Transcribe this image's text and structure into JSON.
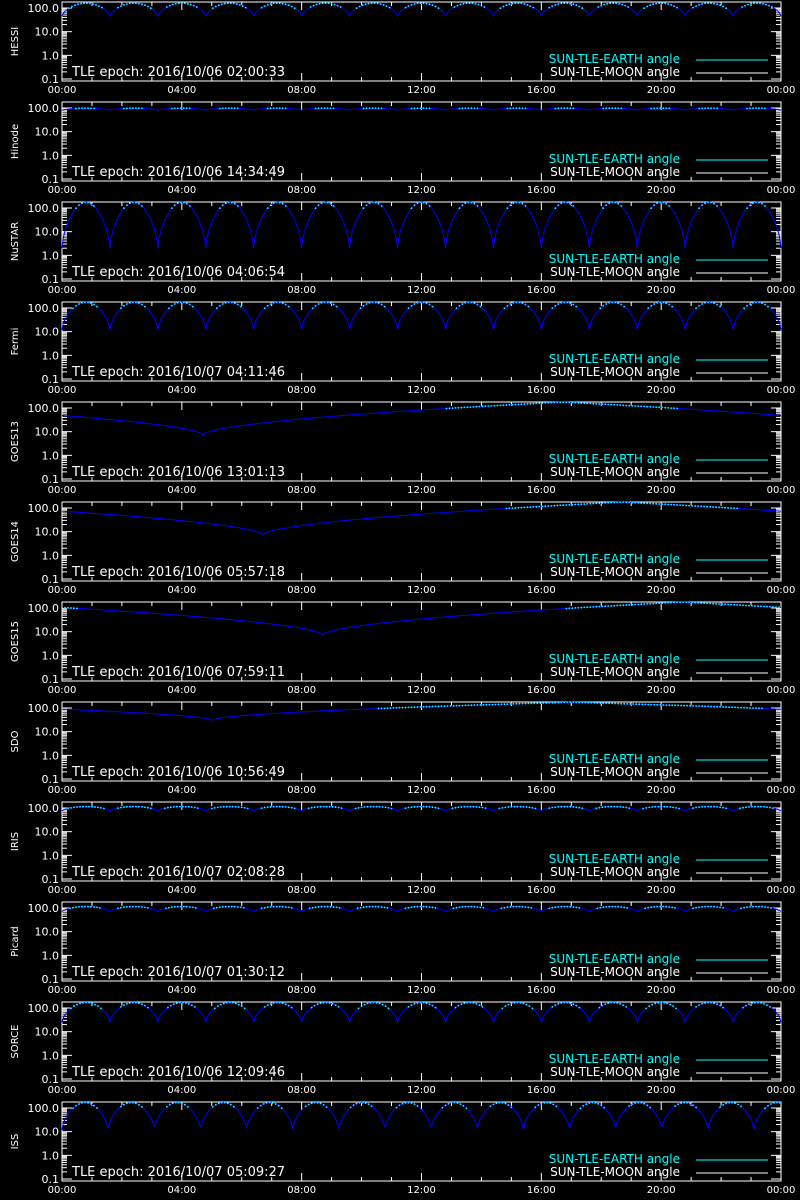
{
  "colors": {
    "background": "#000000",
    "axes": "#ffffff",
    "sun_earth": "#00ffff",
    "sun_moon": "#ffffff",
    "curve": "#0000ff"
  },
  "chart_data": [
    {
      "type": "line",
      "panel": "HESSI",
      "ylabel": "HESSI",
      "epoch_text": "TLE epoch: 2016/10/06 02:00:33",
      "y_scale": "log",
      "ylim": [
        0.1,
        180
      ],
      "yticks": [
        "100.0",
        "10.0",
        "1.0",
        "0.1"
      ],
      "xticks": [
        "00:00",
        "04:00",
        "08:00",
        "12:00",
        "16:00",
        "20:00",
        "00:00"
      ],
      "legend": [
        "SUN-TLE-EARTH angle",
        "SUN-TLE-MOON angle"
      ],
      "legend_position": "bottom-right",
      "curve": {
        "kind": "periodic",
        "period_hours": 1.6,
        "y_max": 160,
        "y_min": 45
      }
    },
    {
      "type": "line",
      "panel": "Hinode",
      "ylabel": "Hinode",
      "epoch_text": "TLE epoch: 2016/10/06 14:34:49",
      "y_scale": "log",
      "ylim": [
        0.1,
        180
      ],
      "yticks": [
        "100.0",
        "10.0",
        "1.0",
        "0.1"
      ],
      "xticks": [
        "00:00",
        "04:00",
        "08:00",
        "12:00",
        "16:00",
        "20:00",
        "00:00"
      ],
      "legend": [
        "SUN-TLE-EARTH angle",
        "SUN-TLE-MOON angle"
      ],
      "legend_position": "bottom-right",
      "curve": {
        "kind": "periodic",
        "period_hours": 1.6,
        "y_max": 98,
        "y_min": 80
      }
    },
    {
      "type": "line",
      "panel": "NuSTAR",
      "ylabel": "NuSTAR",
      "epoch_text": "TLE epoch: 2016/10/06 04:06:54",
      "y_scale": "log",
      "ylim": [
        0.1,
        180
      ],
      "yticks": [
        "100.0",
        "10.0",
        "1.0",
        "0.1"
      ],
      "xticks": [
        "00:00",
        "04:00",
        "08:00",
        "12:00",
        "16:00",
        "20:00",
        "00:00"
      ],
      "legend": [
        "SUN-TLE-EARTH angle",
        "SUN-TLE-MOON angle"
      ],
      "legend_position": "bottom-right",
      "curve": {
        "kind": "periodic",
        "period_hours": 1.6,
        "y_max": 175,
        "y_min": 2
      }
    },
    {
      "type": "line",
      "panel": "Fermi",
      "ylabel": "Fermi",
      "epoch_text": "TLE epoch: 2016/10/07 04:11:46",
      "y_scale": "log",
      "ylim": [
        0.1,
        180
      ],
      "yticks": [
        "100.0",
        "10.0",
        "1.0",
        "0.1"
      ],
      "xticks": [
        "00:00",
        "04:00",
        "08:00",
        "12:00",
        "16:00",
        "20:00",
        "00:00"
      ],
      "legend": [
        "SUN-TLE-EARTH angle",
        "SUN-TLE-MOON angle"
      ],
      "legend_position": "bottom-right",
      "curve": {
        "kind": "periodic",
        "period_hours": 1.6,
        "y_max": 175,
        "y_min": 12
      }
    },
    {
      "type": "line",
      "panel": "GOES13",
      "ylabel": "GOES13",
      "epoch_text": "TLE epoch: 2016/10/06 13:01:13",
      "y_scale": "log",
      "ylim": [
        0.1,
        180
      ],
      "yticks": [
        "100.0",
        "10.0",
        "1.0",
        "0.1"
      ],
      "xticks": [
        "00:00",
        "04:00",
        "08:00",
        "12:00",
        "16:00",
        "20:00",
        "00:00"
      ],
      "legend": [
        "SUN-TLE-EARTH angle",
        "SUN-TLE-MOON angle"
      ],
      "legend_position": "bottom-right",
      "curve": {
        "kind": "daily",
        "min_hour": 4.7,
        "y_min": 7,
        "y_max": 178
      }
    },
    {
      "type": "line",
      "panel": "GOES14",
      "ylabel": "GOES14",
      "epoch_text": "TLE epoch: 2016/10/06 05:57:18",
      "y_scale": "log",
      "ylim": [
        0.1,
        180
      ],
      "yticks": [
        "100.0",
        "10.0",
        "1.0",
        "0.1"
      ],
      "xticks": [
        "00:00",
        "04:00",
        "08:00",
        "12:00",
        "16:00",
        "20:00",
        "00:00"
      ],
      "legend": [
        "SUN-TLE-EARTH angle",
        "SUN-TLE-MOON angle"
      ],
      "legend_position": "bottom-right",
      "curve": {
        "kind": "daily",
        "min_hour": 6.7,
        "y_min": 7,
        "y_max": 178
      }
    },
    {
      "type": "line",
      "panel": "GOES15",
      "ylabel": "GOES15",
      "epoch_text": "TLE epoch: 2016/10/06 07:59:11",
      "y_scale": "log",
      "ylim": [
        0.1,
        180
      ],
      "yticks": [
        "100.0",
        "10.0",
        "1.0",
        "0.1"
      ],
      "xticks": [
        "00:00",
        "04:00",
        "08:00",
        "12:00",
        "16:00",
        "20:00",
        "00:00"
      ],
      "legend": [
        "SUN-TLE-EARTH angle",
        "SUN-TLE-MOON angle"
      ],
      "legend_position": "bottom-right",
      "curve": {
        "kind": "daily",
        "min_hour": 8.7,
        "y_min": 7,
        "y_max": 178
      }
    },
    {
      "type": "line",
      "panel": "SDO",
      "ylabel": "SDO",
      "epoch_text": "TLE epoch: 2016/10/06 10:56:49",
      "y_scale": "log",
      "ylim": [
        0.1,
        180
      ],
      "yticks": [
        "100.0",
        "10.0",
        "1.0",
        "0.1"
      ],
      "xticks": [
        "00:00",
        "04:00",
        "08:00",
        "12:00",
        "16:00",
        "20:00",
        "00:00"
      ],
      "legend": [
        "SUN-TLE-EARTH angle",
        "SUN-TLE-MOON angle"
      ],
      "legend_position": "bottom-right",
      "curve": {
        "kind": "daily",
        "min_hour": 5.0,
        "y_min": 30,
        "y_max": 175
      }
    },
    {
      "type": "line",
      "panel": "IRIS",
      "ylabel": "IRIS",
      "epoch_text": "TLE epoch: 2016/10/07 02:08:28",
      "y_scale": "log",
      "ylim": [
        0.1,
        180
      ],
      "yticks": [
        "100.0",
        "10.0",
        "1.0",
        "0.1"
      ],
      "xticks": [
        "00:00",
        "04:00",
        "08:00",
        "12:00",
        "16:00",
        "20:00",
        "00:00"
      ],
      "legend": [
        "SUN-TLE-EARTH angle",
        "SUN-TLE-MOON angle"
      ],
      "legend_position": "bottom-right",
      "curve": {
        "kind": "periodic",
        "period_hours": 1.6,
        "y_max": 115,
        "y_min": 75
      }
    },
    {
      "type": "line",
      "panel": "Picard",
      "ylabel": "Picard",
      "epoch_text": "TLE epoch: 2016/10/07 01:30:12",
      "y_scale": "log",
      "ylim": [
        0.1,
        180
      ],
      "yticks": [
        "100.0",
        "10.0",
        "1.0",
        "0.1"
      ],
      "xticks": [
        "00:00",
        "04:00",
        "08:00",
        "12:00",
        "16:00",
        "20:00",
        "00:00"
      ],
      "legend": [
        "SUN-TLE-EARTH angle",
        "SUN-TLE-MOON angle"
      ],
      "legend_position": "bottom-right",
      "curve": {
        "kind": "periodic",
        "period_hours": 1.6,
        "y_max": 115,
        "y_min": 70
      }
    },
    {
      "type": "line",
      "panel": "SORCE",
      "ylabel": "SORCE",
      "epoch_text": "TLE epoch: 2016/10/06 12:09:46",
      "y_scale": "log",
      "ylim": [
        0.1,
        180
      ],
      "yticks": [
        "100.0",
        "10.0",
        "1.0",
        "0.1"
      ],
      "xticks": [
        "00:00",
        "04:00",
        "08:00",
        "12:00",
        "16:00",
        "20:00",
        "00:00"
      ],
      "legend": [
        "SUN-TLE-EARTH angle",
        "SUN-TLE-MOON angle"
      ],
      "legend_position": "bottom-right",
      "curve": {
        "kind": "periodic",
        "period_hours": 1.6,
        "y_max": 170,
        "y_min": 25
      }
    },
    {
      "type": "line",
      "panel": "ISS",
      "ylabel": "ISS",
      "epoch_text": "TLE epoch: 2016/10/07 05:09:27",
      "y_scale": "log",
      "ylim": [
        0.1,
        180
      ],
      "yticks": [
        "100.0",
        "10.0",
        "1.0",
        "0.1"
      ],
      "xticks": [
        "00:00",
        "04:00",
        "08:00",
        "12:00",
        "16:00",
        "20:00",
        "00:00"
      ],
      "legend": [
        "SUN-TLE-EARTH angle",
        "SUN-TLE-MOON angle"
      ],
      "legend_position": "bottom-right",
      "curve": {
        "kind": "periodic",
        "period_hours": 1.54,
        "y_max": 170,
        "y_min": 12
      }
    }
  ]
}
